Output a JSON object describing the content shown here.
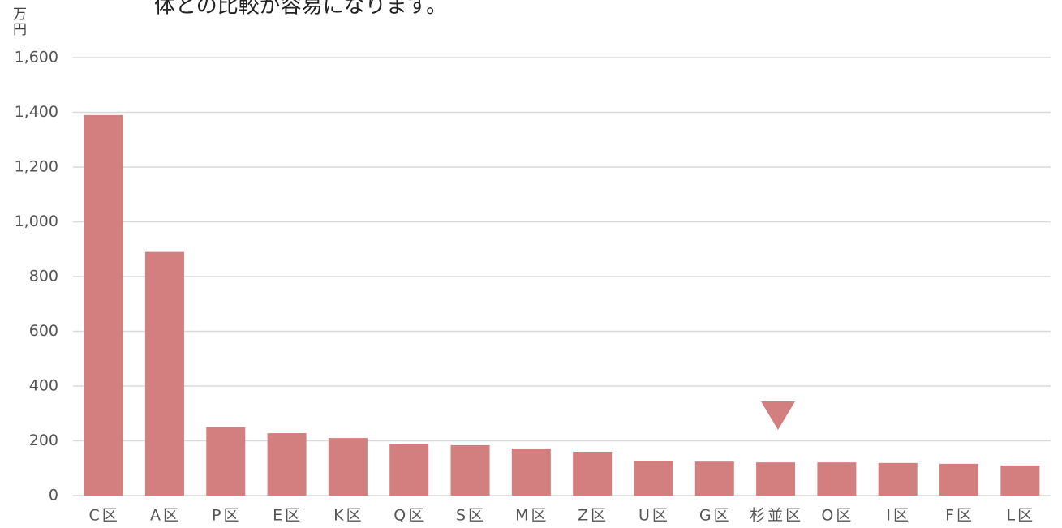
{
  "chart_data": {
    "type": "bar",
    "subtitle": "体との比較が容易になります。",
    "y_label": "万円",
    "categories": [
      "C区",
      "A区",
      "P区",
      "E区",
      "K区",
      "Q区",
      "S区",
      "M区",
      "Z区",
      "U区",
      "G区",
      "杉並区",
      "O区",
      "I区",
      "F区",
      "L区"
    ],
    "values": [
      1390,
      890,
      250,
      228,
      210,
      187,
      184,
      172,
      160,
      127,
      124,
      121,
      121,
      119,
      116,
      110
    ],
    "color": "#d47f7f",
    "ylim": [
      0,
      1600
    ],
    "yticks": [
      0,
      200,
      400,
      600,
      800,
      {
        "value": 1000,
        "label": "1,000"
      },
      {
        "value": 1200,
        "label": "1,200"
      },
      {
        "value": 1400,
        "label": "1,400"
      },
      {
        "value": 1600,
        "label": "1,600"
      }
    ],
    "grid": true
  }
}
